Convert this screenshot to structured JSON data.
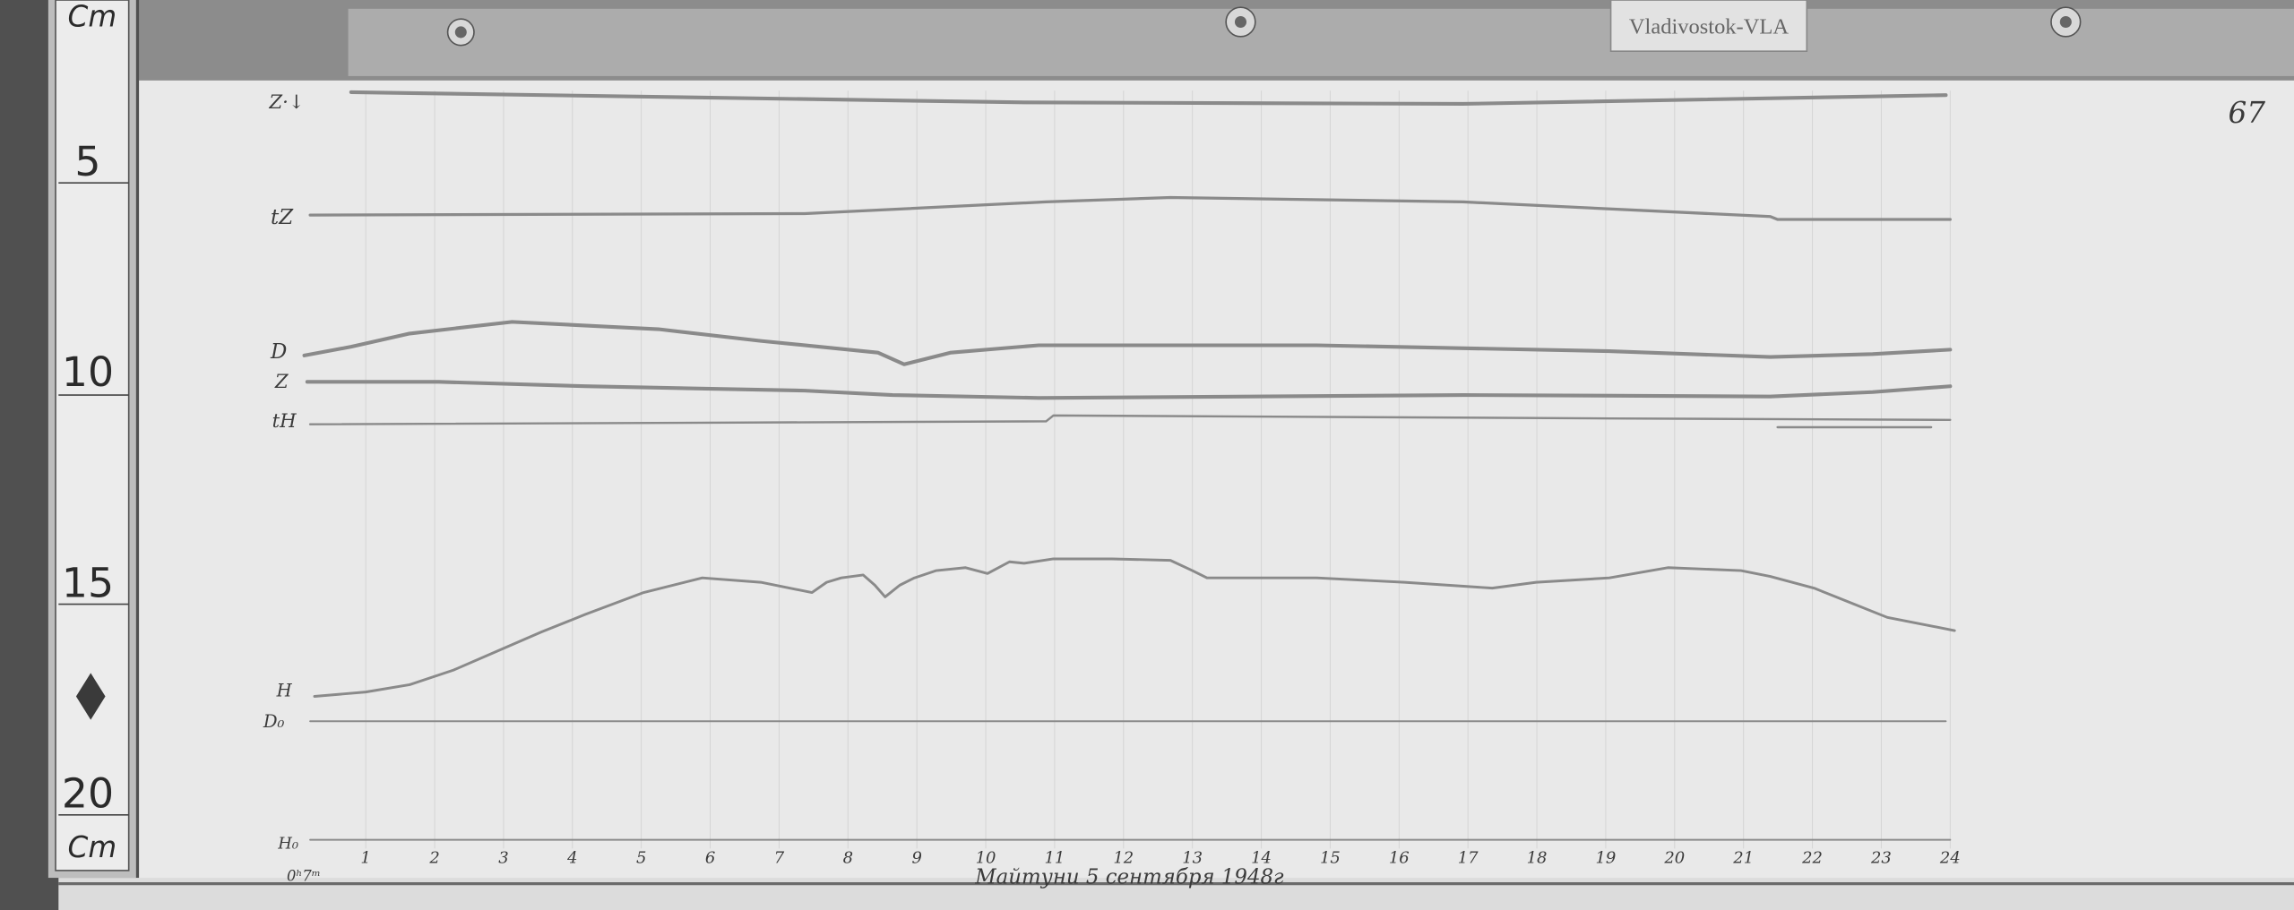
{
  "station_label": "Vladivostok-VLA",
  "page_number": "67",
  "caption": "Майтуни 5 сентября 1948г",
  "ruler": {
    "unit_top": "Cm",
    "unit_bottom": "Cm",
    "marks": [
      "5",
      "10",
      "15",
      "20"
    ]
  },
  "trace_labels": {
    "z_marker": "Z·↓",
    "tz": "tZ",
    "d": "D",
    "z": "Z",
    "th": "tH",
    "h": "H",
    "d0": "D₀",
    "h0": "H₀",
    "start_time": "0ʰ7ᵐ"
  },
  "hours": [
    "1",
    "2",
    "3",
    "4",
    "5",
    "6",
    "7",
    "8",
    "9",
    "10",
    "11",
    "12",
    "13",
    "14",
    "15",
    "16",
    "17",
    "18",
    "19",
    "20",
    "21",
    "22",
    "23",
    "24"
  ],
  "colors": {
    "paper": "#e9e9e9",
    "trace": "#8a8a8a",
    "wood": "#4a4a4a"
  }
}
